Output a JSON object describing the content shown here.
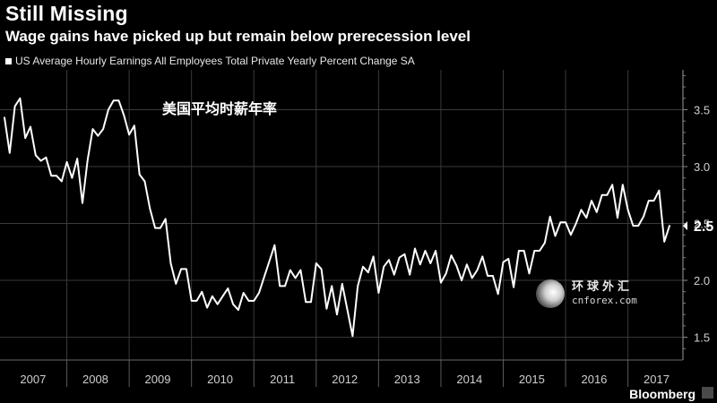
{
  "header": {
    "title": "Still Missing",
    "subtitle": "Wage gains have picked up but remain below prerecession level"
  },
  "legend": {
    "label": "US Average Hourly Earnings All Employees Total Private Yearly Percent Change SA"
  },
  "annotation": "美国平均时薪年率",
  "watermark": {
    "chinese": "环球外汇",
    "url": "cnforex.com"
  },
  "brand": "Bloomberg",
  "colors": {
    "background": "#000000",
    "line": "#ffffff",
    "grid": "#3a3a3a",
    "text": "#ffffff"
  },
  "chart_data": {
    "type": "line",
    "xlabel": "",
    "ylabel": "",
    "x_tick_labels": [
      "2007",
      "2008",
      "2009",
      "2010",
      "2011",
      "2012",
      "2013",
      "2014",
      "2015",
      "2016",
      "2017"
    ],
    "y_ticks": [
      1.5,
      2.0,
      2.5,
      3.0,
      3.5
    ],
    "y_tick_labels": [
      "1.5",
      "2.0",
      "2.5",
      "3.0",
      "3.5"
    ],
    "ylim": [
      1.3,
      3.85
    ],
    "xlim": [
      "2007-01",
      "2017-09"
    ],
    "y_axis_position": "right",
    "last_value_label": "2.5",
    "grid": true,
    "series": [
      {
        "values": [
          [
            "2007-01",
            3.43
          ],
          [
            "2007-02",
            3.12
          ],
          [
            "2007-03",
            3.53
          ],
          [
            "2007-04",
            3.6
          ],
          [
            "2007-05",
            3.25
          ],
          [
            "2007-06",
            3.35
          ],
          [
            "2007-07",
            3.1
          ],
          [
            "2007-08",
            3.05
          ],
          [
            "2007-09",
            3.08
          ],
          [
            "2007-10",
            2.92
          ],
          [
            "2007-11",
            2.92
          ],
          [
            "2007-12",
            2.87
          ],
          [
            "2008-01",
            3.04
          ],
          [
            "2008-02",
            2.9
          ],
          [
            "2008-03",
            3.07
          ],
          [
            "2008-04",
            2.68
          ],
          [
            "2008-05",
            3.06
          ],
          [
            "2008-06",
            3.33
          ],
          [
            "2008-07",
            3.27
          ],
          [
            "2008-08",
            3.33
          ],
          [
            "2008-09",
            3.5
          ],
          [
            "2008-10",
            3.58
          ],
          [
            "2008-11",
            3.58
          ],
          [
            "2008-12",
            3.45
          ],
          [
            "2009-01",
            3.28
          ],
          [
            "2009-02",
            3.36
          ],
          [
            "2009-03",
            2.93
          ],
          [
            "2009-04",
            2.87
          ],
          [
            "2009-05",
            2.63
          ],
          [
            "2009-06",
            2.46
          ],
          [
            "2009-07",
            2.46
          ],
          [
            "2009-08",
            2.54
          ],
          [
            "2009-09",
            2.15
          ],
          [
            "2009-10",
            1.97
          ],
          [
            "2009-11",
            2.1
          ],
          [
            "2009-12",
            2.1
          ],
          [
            "2010-01",
            1.82
          ],
          [
            "2010-02",
            1.82
          ],
          [
            "2010-03",
            1.9
          ],
          [
            "2010-04",
            1.76
          ],
          [
            "2010-05",
            1.86
          ],
          [
            "2010-06",
            1.79
          ],
          [
            "2010-07",
            1.86
          ],
          [
            "2010-08",
            1.93
          ],
          [
            "2010-09",
            1.79
          ],
          [
            "2010-10",
            1.74
          ],
          [
            "2010-11",
            1.89
          ],
          [
            "2010-12",
            1.82
          ],
          [
            "2011-01",
            1.82
          ],
          [
            "2011-02",
            1.89
          ],
          [
            "2011-03",
            2.03
          ],
          [
            "2011-04",
            2.17
          ],
          [
            "2011-05",
            2.31
          ],
          [
            "2011-06",
            1.95
          ],
          [
            "2011-07",
            1.95
          ],
          [
            "2011-08",
            2.09
          ],
          [
            "2011-09",
            2.02
          ],
          [
            "2011-10",
            2.09
          ],
          [
            "2011-11",
            1.81
          ],
          [
            "2011-12",
            1.81
          ],
          [
            "2012-01",
            2.15
          ],
          [
            "2012-02",
            2.1
          ],
          [
            "2012-03",
            1.75
          ],
          [
            "2012-04",
            1.95
          ],
          [
            "2012-05",
            1.7
          ],
          [
            "2012-06",
            1.97
          ],
          [
            "2012-07",
            1.74
          ],
          [
            "2012-08",
            1.51
          ],
          [
            "2012-09",
            1.95
          ],
          [
            "2012-10",
            2.12
          ],
          [
            "2012-11",
            2.07
          ],
          [
            "2012-12",
            2.21
          ],
          [
            "2013-01",
            1.89
          ],
          [
            "2013-02",
            2.12
          ],
          [
            "2013-03",
            2.18
          ],
          [
            "2013-04",
            2.05
          ],
          [
            "2013-05",
            2.2
          ],
          [
            "2013-06",
            2.23
          ],
          [
            "2013-07",
            2.05
          ],
          [
            "2013-08",
            2.28
          ],
          [
            "2013-09",
            2.14
          ],
          [
            "2013-10",
            2.26
          ],
          [
            "2013-11",
            2.15
          ],
          [
            "2013-12",
            2.26
          ],
          [
            "2014-01",
            1.98
          ],
          [
            "2014-02",
            2.06
          ],
          [
            "2014-03",
            2.22
          ],
          [
            "2014-04",
            2.13
          ],
          [
            "2014-05",
            2.0
          ],
          [
            "2014-06",
            2.14
          ],
          [
            "2014-07",
            2.02
          ],
          [
            "2014-08",
            2.09
          ],
          [
            "2014-09",
            2.21
          ],
          [
            "2014-10",
            2.04
          ],
          [
            "2014-11",
            2.04
          ],
          [
            "2014-12",
            1.88
          ],
          [
            "2015-01",
            2.16
          ],
          [
            "2015-02",
            2.19
          ],
          [
            "2015-03",
            1.94
          ],
          [
            "2015-04",
            2.26
          ],
          [
            "2015-05",
            2.26
          ],
          [
            "2015-06",
            2.06
          ],
          [
            "2015-07",
            2.26
          ],
          [
            "2015-08",
            2.26
          ],
          [
            "2015-09",
            2.33
          ],
          [
            "2015-10",
            2.56
          ],
          [
            "2015-11",
            2.39
          ],
          [
            "2015-12",
            2.51
          ],
          [
            "2016-01",
            2.51
          ],
          [
            "2016-02",
            2.4
          ],
          [
            "2016-03",
            2.5
          ],
          [
            "2016-04",
            2.62
          ],
          [
            "2016-05",
            2.55
          ],
          [
            "2016-06",
            2.7
          ],
          [
            "2016-07",
            2.6
          ],
          [
            "2016-08",
            2.75
          ],
          [
            "2016-09",
            2.75
          ],
          [
            "2016-10",
            2.84
          ],
          [
            "2016-11",
            2.55
          ],
          [
            "2016-12",
            2.84
          ],
          [
            "2017-01",
            2.62
          ],
          [
            "2017-02",
            2.48
          ],
          [
            "2017-03",
            2.48
          ],
          [
            "2017-04",
            2.56
          ],
          [
            "2017-05",
            2.7
          ],
          [
            "2017-06",
            2.7
          ],
          [
            "2017-07",
            2.79
          ],
          [
            "2017-08",
            2.34
          ],
          [
            "2017-09",
            2.48
          ]
        ]
      }
    ]
  }
}
